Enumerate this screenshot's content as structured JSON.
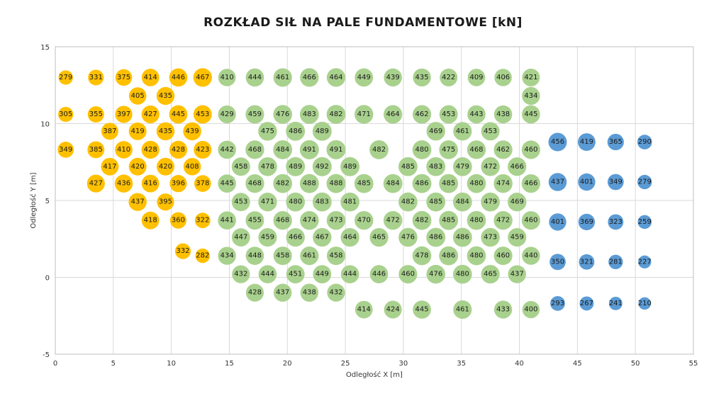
{
  "chart_data": {
    "type": "scatter",
    "title": "ROZKŁAD SIŁ NA PALE FUNDAMENTOWE [kN]",
    "xlabel": "Odległość X [m]",
    "ylabel": "Odległość Y [m]",
    "xlim": [
      0,
      55
    ],
    "ylim": [
      -5,
      15
    ],
    "xticks": [
      0,
      5,
      10,
      15,
      20,
      25,
      30,
      35,
      40,
      45,
      50,
      55
    ],
    "yticks": [
      -5,
      0,
      5,
      10,
      15
    ],
    "grid": true,
    "colors": {
      "orange": "#FFC000",
      "green": "#A9D18E",
      "blue": "#5B9BD5"
    },
    "series": [
      {
        "color": "#FFC000",
        "points": [
          [
            0.9,
            13,
            279
          ],
          [
            3.5,
            13,
            331
          ],
          [
            5.9,
            13,
            375
          ],
          [
            8.2,
            13,
            414
          ],
          [
            10.6,
            13,
            446
          ],
          [
            12.7,
            13,
            467
          ],
          [
            7.1,
            11.8,
            405
          ],
          [
            9.5,
            11.8,
            435
          ],
          [
            0.9,
            10.6,
            305
          ],
          [
            3.5,
            10.6,
            355
          ],
          [
            5.9,
            10.6,
            397
          ],
          [
            8.2,
            10.6,
            427
          ],
          [
            10.6,
            10.6,
            445
          ],
          [
            12.7,
            10.6,
            453
          ],
          [
            4.7,
            9.5,
            387
          ],
          [
            7.1,
            9.5,
            419
          ],
          [
            9.5,
            9.5,
            435
          ],
          [
            11.8,
            9.5,
            439
          ],
          [
            0.9,
            8.3,
            349
          ],
          [
            3.5,
            8.3,
            385
          ],
          [
            5.9,
            8.3,
            410
          ],
          [
            8.2,
            8.3,
            428
          ],
          [
            10.6,
            8.3,
            428
          ],
          [
            12.7,
            8.3,
            423
          ],
          [
            4.7,
            7.2,
            417
          ],
          [
            7.1,
            7.2,
            420
          ],
          [
            9.5,
            7.2,
            420
          ],
          [
            11.8,
            7.2,
            408
          ],
          [
            3.5,
            6.1,
            427
          ],
          [
            5.9,
            6.1,
            436
          ],
          [
            8.2,
            6.1,
            416
          ],
          [
            10.6,
            6.1,
            396
          ],
          [
            12.7,
            6.1,
            378
          ],
          [
            7.1,
            4.9,
            437
          ],
          [
            9.5,
            4.9,
            395
          ],
          [
            8.2,
            3.7,
            418
          ],
          [
            10.6,
            3.7,
            360
          ],
          [
            12.7,
            3.7,
            322
          ],
          [
            11,
            1.7,
            332
          ],
          [
            12.7,
            1.4,
            282
          ]
        ]
      },
      {
        "color": "#A9D18E",
        "points": [
          [
            14.8,
            13,
            410
          ],
          [
            17.2,
            13,
            444
          ],
          [
            19.6,
            13,
            461
          ],
          [
            21.9,
            13,
            466
          ],
          [
            24.2,
            13,
            464
          ],
          [
            26.6,
            13,
            449
          ],
          [
            29.1,
            13,
            439
          ],
          [
            31.6,
            13,
            435
          ],
          [
            33.9,
            13,
            422
          ],
          [
            36.3,
            13,
            409
          ],
          [
            38.6,
            13,
            406
          ],
          [
            41,
            13,
            421
          ],
          [
            41,
            11.8,
            434
          ],
          [
            14.8,
            10.6,
            429
          ],
          [
            17.2,
            10.6,
            459
          ],
          [
            19.6,
            10.6,
            476
          ],
          [
            21.9,
            10.6,
            483
          ],
          [
            24.2,
            10.6,
            482
          ],
          [
            26.6,
            10.6,
            471
          ],
          [
            29.1,
            10.6,
            464
          ],
          [
            31.6,
            10.6,
            462
          ],
          [
            33.9,
            10.6,
            453
          ],
          [
            36.3,
            10.6,
            443
          ],
          [
            38.6,
            10.6,
            438
          ],
          [
            41,
            10.6,
            445
          ],
          [
            18.3,
            9.5,
            475
          ],
          [
            20.7,
            9.5,
            486
          ],
          [
            23,
            9.5,
            489
          ],
          [
            32.8,
            9.5,
            469
          ],
          [
            35.1,
            9.5,
            461
          ],
          [
            37.5,
            9.5,
            453
          ],
          [
            14.8,
            8.3,
            442
          ],
          [
            17.2,
            8.3,
            468
          ],
          [
            19.6,
            8.3,
            484
          ],
          [
            21.9,
            8.3,
            491
          ],
          [
            24.2,
            8.3,
            491
          ],
          [
            27.9,
            8.3,
            482
          ],
          [
            31.6,
            8.3,
            480
          ],
          [
            33.9,
            8.3,
            475
          ],
          [
            36.3,
            8.3,
            468
          ],
          [
            38.6,
            8.3,
            462
          ],
          [
            41,
            8.3,
            460
          ],
          [
            16,
            7.2,
            458
          ],
          [
            18.3,
            7.2,
            478
          ],
          [
            20.7,
            7.2,
            489
          ],
          [
            23,
            7.2,
            492
          ],
          [
            25.4,
            7.2,
            489
          ],
          [
            30.4,
            7.2,
            485
          ],
          [
            32.8,
            7.2,
            483
          ],
          [
            35.1,
            7.2,
            479
          ],
          [
            37.5,
            7.2,
            472
          ],
          [
            39.8,
            7.2,
            466
          ],
          [
            14.8,
            6.1,
            445
          ],
          [
            17.2,
            6.1,
            468
          ],
          [
            19.6,
            6.1,
            482
          ],
          [
            21.9,
            6.1,
            488
          ],
          [
            24.2,
            6.1,
            488
          ],
          [
            26.6,
            6.1,
            485
          ],
          [
            29.1,
            6.1,
            484
          ],
          [
            31.6,
            6.1,
            486
          ],
          [
            33.9,
            6.1,
            485
          ],
          [
            36.3,
            6.1,
            480
          ],
          [
            38.6,
            6.1,
            474
          ],
          [
            41,
            6.1,
            466
          ],
          [
            16,
            4.9,
            453
          ],
          [
            18.3,
            4.9,
            471
          ],
          [
            20.7,
            4.9,
            480
          ],
          [
            23,
            4.9,
            483
          ],
          [
            25.4,
            4.9,
            481
          ],
          [
            30.4,
            4.9,
            482
          ],
          [
            32.8,
            4.9,
            485
          ],
          [
            35.1,
            4.9,
            484
          ],
          [
            37.5,
            4.9,
            479
          ],
          [
            39.8,
            4.9,
            469
          ],
          [
            14.8,
            3.7,
            441
          ],
          [
            17.2,
            3.7,
            455
          ],
          [
            19.6,
            3.7,
            468
          ],
          [
            21.9,
            3.7,
            474
          ],
          [
            24.2,
            3.7,
            473
          ],
          [
            26.6,
            3.7,
            470
          ],
          [
            29.1,
            3.7,
            472
          ],
          [
            31.6,
            3.7,
            482
          ],
          [
            33.9,
            3.7,
            485
          ],
          [
            36.3,
            3.7,
            480
          ],
          [
            38.6,
            3.7,
            472
          ],
          [
            41,
            3.7,
            460
          ],
          [
            16,
            2.6,
            447
          ],
          [
            18.3,
            2.6,
            459
          ],
          [
            20.7,
            2.6,
            466
          ],
          [
            23,
            2.6,
            467
          ],
          [
            25.4,
            2.6,
            464
          ],
          [
            27.9,
            2.6,
            465
          ],
          [
            30.4,
            2.6,
            476
          ],
          [
            32.8,
            2.6,
            486
          ],
          [
            35.1,
            2.6,
            486
          ],
          [
            37.5,
            2.6,
            473
          ],
          [
            39.8,
            2.6,
            459
          ],
          [
            14.8,
            1.4,
            434
          ],
          [
            17.2,
            1.4,
            448
          ],
          [
            19.6,
            1.4,
            458
          ],
          [
            21.9,
            1.4,
            461
          ],
          [
            24.2,
            1.4,
            458
          ],
          [
            31.6,
            1.4,
            478
          ],
          [
            33.9,
            1.4,
            486
          ],
          [
            36.3,
            1.4,
            480
          ],
          [
            38.6,
            1.4,
            460
          ],
          [
            41,
            1.4,
            440
          ],
          [
            16,
            0.2,
            432
          ],
          [
            18.3,
            0.2,
            444
          ],
          [
            20.7,
            0.2,
            451
          ],
          [
            23,
            0.2,
            449
          ],
          [
            25.4,
            0.2,
            444
          ],
          [
            27.9,
            0.2,
            446
          ],
          [
            30.4,
            0.2,
            460
          ],
          [
            32.8,
            0.2,
            476
          ],
          [
            35.1,
            0.2,
            480
          ],
          [
            37.5,
            0.2,
            465
          ],
          [
            39.8,
            0.2,
            437
          ],
          [
            17.2,
            -1,
            428
          ],
          [
            19.6,
            -1,
            437
          ],
          [
            21.9,
            -1,
            438
          ],
          [
            24.2,
            -1,
            432
          ],
          [
            26.6,
            -2.1,
            414
          ],
          [
            29.1,
            -2.1,
            424
          ],
          [
            31.6,
            -2.1,
            445
          ],
          [
            35.1,
            -2.1,
            461
          ],
          [
            38.6,
            -2.1,
            433
          ],
          [
            41,
            -2.1,
            400
          ]
        ]
      },
      {
        "color": "#5B9BD5",
        "points": [
          [
            43.3,
            8.8,
            456
          ],
          [
            45.8,
            8.8,
            419
          ],
          [
            48.3,
            8.8,
            365
          ],
          [
            50.8,
            8.8,
            290
          ],
          [
            43.3,
            6.2,
            437
          ],
          [
            45.8,
            6.2,
            401
          ],
          [
            48.3,
            6.2,
            349
          ],
          [
            50.8,
            6.2,
            279
          ],
          [
            43.3,
            3.6,
            401
          ],
          [
            45.8,
            3.6,
            369
          ],
          [
            48.3,
            3.6,
            323
          ],
          [
            50.8,
            3.6,
            259
          ],
          [
            43.3,
            1,
            350
          ],
          [
            45.8,
            1,
            321
          ],
          [
            48.3,
            1,
            281
          ],
          [
            50.8,
            1,
            227
          ],
          [
            43.3,
            -1.7,
            293
          ],
          [
            45.8,
            -1.7,
            267
          ],
          [
            48.3,
            -1.7,
            241
          ],
          [
            50.8,
            -1.7,
            210
          ]
        ]
      }
    ]
  }
}
